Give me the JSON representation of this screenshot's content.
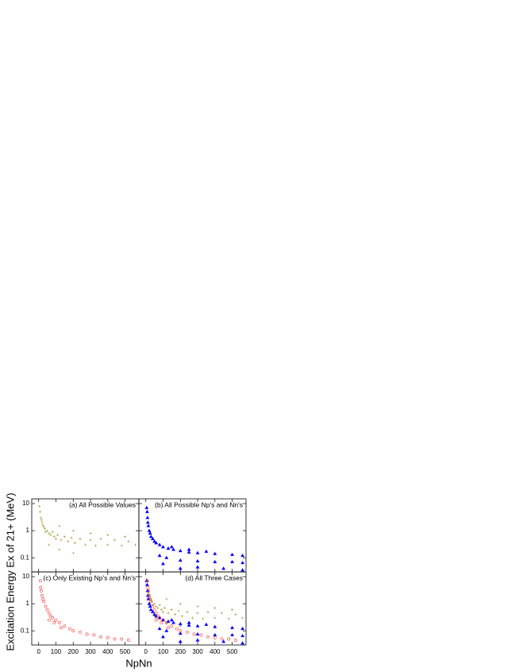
{
  "chart_data": [
    {
      "type": "scatter",
      "annotation": "(a) All Possible Values",
      "ylabel": "Excitation Energy Ex of 21+ (MeV)",
      "log_y": true,
      "xlim": [
        -40,
        580
      ],
      "ylim": [
        0.03,
        15
      ],
      "xticks": [
        0,
        100,
        200,
        300,
        400,
        500
      ],
      "yticks": [
        10,
        1,
        0.1
      ],
      "series": [
        {
          "color": "#a3a34a",
          "marker": "plus",
          "x": [
            4,
            8,
            12,
            16,
            20,
            24,
            30,
            36,
            40,
            50,
            60,
            70,
            80,
            90,
            100,
            110,
            130,
            150,
            170,
            190,
            210,
            240,
            270,
            300,
            330,
            360,
            400,
            440,
            480,
            520,
            560,
            60,
            120,
            200,
            120,
            200,
            300,
            400,
            500
          ],
          "values": [
            8,
            5,
            3,
            2.5,
            2,
            1.6,
            1.4,
            1.2,
            0.9,
            1.0,
            0.8,
            0.7,
            0.9,
            0.6,
            0.5,
            0.7,
            0.45,
            0.6,
            0.4,
            0.55,
            0.35,
            0.5,
            0.3,
            0.45,
            0.28,
            0.5,
            0.3,
            0.45,
            0.28,
            0.4,
            0.3,
            0.3,
            0.2,
            0.15,
            1.5,
            1.0,
            0.8,
            0.7,
            0.6
          ]
        }
      ]
    },
    {
      "type": "scatter",
      "annotation": "(b) All Possible Np's and Nn's",
      "log_y": true,
      "xlim": [
        -40,
        580
      ],
      "ylim": [
        0.03,
        15
      ],
      "xticks": [
        0,
        100,
        200,
        300,
        400,
        500
      ],
      "yticks": [
        10,
        1,
        0.1
      ],
      "series": [
        {
          "color": "#0000ff",
          "marker": "triangle",
          "x": [
            5,
            8,
            10,
            12,
            15,
            20,
            25,
            30,
            40,
            50,
            60,
            80,
            100,
            130,
            160,
            200,
            250,
            300,
            400,
            500,
            560,
            80,
            120,
            200,
            300,
            400,
            500,
            560,
            100,
            200,
            300,
            450,
            560,
            150,
            250,
            350
          ],
          "values": [
            7,
            5,
            3,
            2,
            1.5,
            1,
            0.8,
            0.6,
            0.5,
            0.4,
            0.35,
            0.3,
            0.25,
            0.22,
            0.2,
            0.18,
            0.16,
            0.15,
            0.14,
            0.13,
            0.12,
            0.12,
            0.1,
            0.08,
            0.075,
            0.07,
            0.07,
            0.065,
            0.06,
            0.04,
            0.045,
            0.04,
            0.035,
            0.25,
            0.2,
            0.17
          ]
        }
      ]
    },
    {
      "type": "scatter",
      "annotation": "(c) Only Existing Np's and Nn's",
      "xlabel": "NpNn",
      "log_y": true,
      "xlim": [
        -40,
        580
      ],
      "ylim": [
        0.03,
        15
      ],
      "xticks": [
        0,
        100,
        200,
        300,
        400,
        500
      ],
      "yticks": [
        10,
        1,
        0.1
      ],
      "series": [
        {
          "color": "#ff3030",
          "marker": "circle",
          "x": [
            10,
            12,
            15,
            20,
            25,
            30,
            40,
            50,
            60,
            70,
            80,
            100,
            120,
            150,
            180,
            200,
            240,
            280,
            320,
            360,
            400,
            440,
            480,
            520,
            60,
            90,
            130
          ],
          "values": [
            7,
            4,
            3,
            2,
            1.5,
            1.2,
            0.8,
            0.6,
            0.45,
            0.35,
            0.3,
            0.25,
            0.2,
            0.15,
            0.12,
            0.1,
            0.09,
            0.075,
            0.07,
            0.06,
            0.055,
            0.05,
            0.05,
            0.045,
            0.25,
            0.2,
            0.13
          ]
        }
      ]
    },
    {
      "type": "scatter",
      "annotation": "(d) All Three Cases",
      "log_y": true,
      "xlim": [
        -40,
        580
      ],
      "ylim": [
        0.03,
        15
      ],
      "xticks": [
        0,
        100,
        200,
        300,
        400,
        500
      ],
      "yticks": [
        10,
        1,
        0.1
      ],
      "series": [
        {
          "color": "#a3a34a",
          "marker": "plus",
          "x": [
            4,
            8,
            12,
            16,
            20,
            24,
            30,
            36,
            40,
            50,
            60,
            70,
            80,
            90,
            100,
            110,
            130,
            150,
            170,
            190,
            210,
            240,
            270,
            300,
            330,
            360,
            400,
            440,
            480,
            520,
            560,
            60,
            120,
            200,
            120,
            200,
            300,
            400,
            500
          ],
          "values": [
            8,
            5,
            3,
            2.5,
            2,
            1.6,
            1.4,
            1.2,
            0.9,
            1.0,
            0.8,
            0.7,
            0.9,
            0.6,
            0.5,
            0.7,
            0.45,
            0.6,
            0.4,
            0.55,
            0.35,
            0.5,
            0.3,
            0.45,
            0.28,
            0.5,
            0.3,
            0.45,
            0.28,
            0.4,
            0.3,
            0.3,
            0.2,
            0.15,
            1.5,
            1.0,
            0.8,
            0.7,
            0.6
          ]
        },
        {
          "color": "#0000ff",
          "marker": "triangle",
          "x": [
            5,
            8,
            10,
            12,
            15,
            20,
            25,
            30,
            40,
            50,
            60,
            80,
            100,
            130,
            160,
            200,
            250,
            300,
            400,
            500,
            560,
            80,
            120,
            200,
            300,
            400,
            500,
            560,
            100,
            200,
            300,
            450,
            560,
            150,
            250,
            350
          ],
          "values": [
            7,
            5,
            3,
            2,
            1.5,
            1,
            0.8,
            0.6,
            0.5,
            0.4,
            0.35,
            0.3,
            0.25,
            0.22,
            0.2,
            0.18,
            0.16,
            0.15,
            0.14,
            0.13,
            0.12,
            0.12,
            0.1,
            0.08,
            0.075,
            0.07,
            0.07,
            0.065,
            0.06,
            0.04,
            0.045,
            0.04,
            0.035,
            0.25,
            0.2,
            0.17
          ]
        },
        {
          "color": "#ff3030",
          "marker": "circle",
          "x": [
            10,
            12,
            15,
            20,
            25,
            30,
            40,
            50,
            60,
            70,
            80,
            100,
            120,
            150,
            180,
            200,
            240,
            280,
            320,
            360,
            400,
            440,
            480,
            520,
            60,
            90,
            130
          ],
          "values": [
            7,
            4,
            3,
            2,
            1.5,
            1.2,
            0.8,
            0.6,
            0.45,
            0.35,
            0.3,
            0.25,
            0.2,
            0.15,
            0.12,
            0.1,
            0.09,
            0.075,
            0.07,
            0.06,
            0.055,
            0.05,
            0.05,
            0.045,
            0.25,
            0.2,
            0.13
          ]
        }
      ]
    }
  ]
}
